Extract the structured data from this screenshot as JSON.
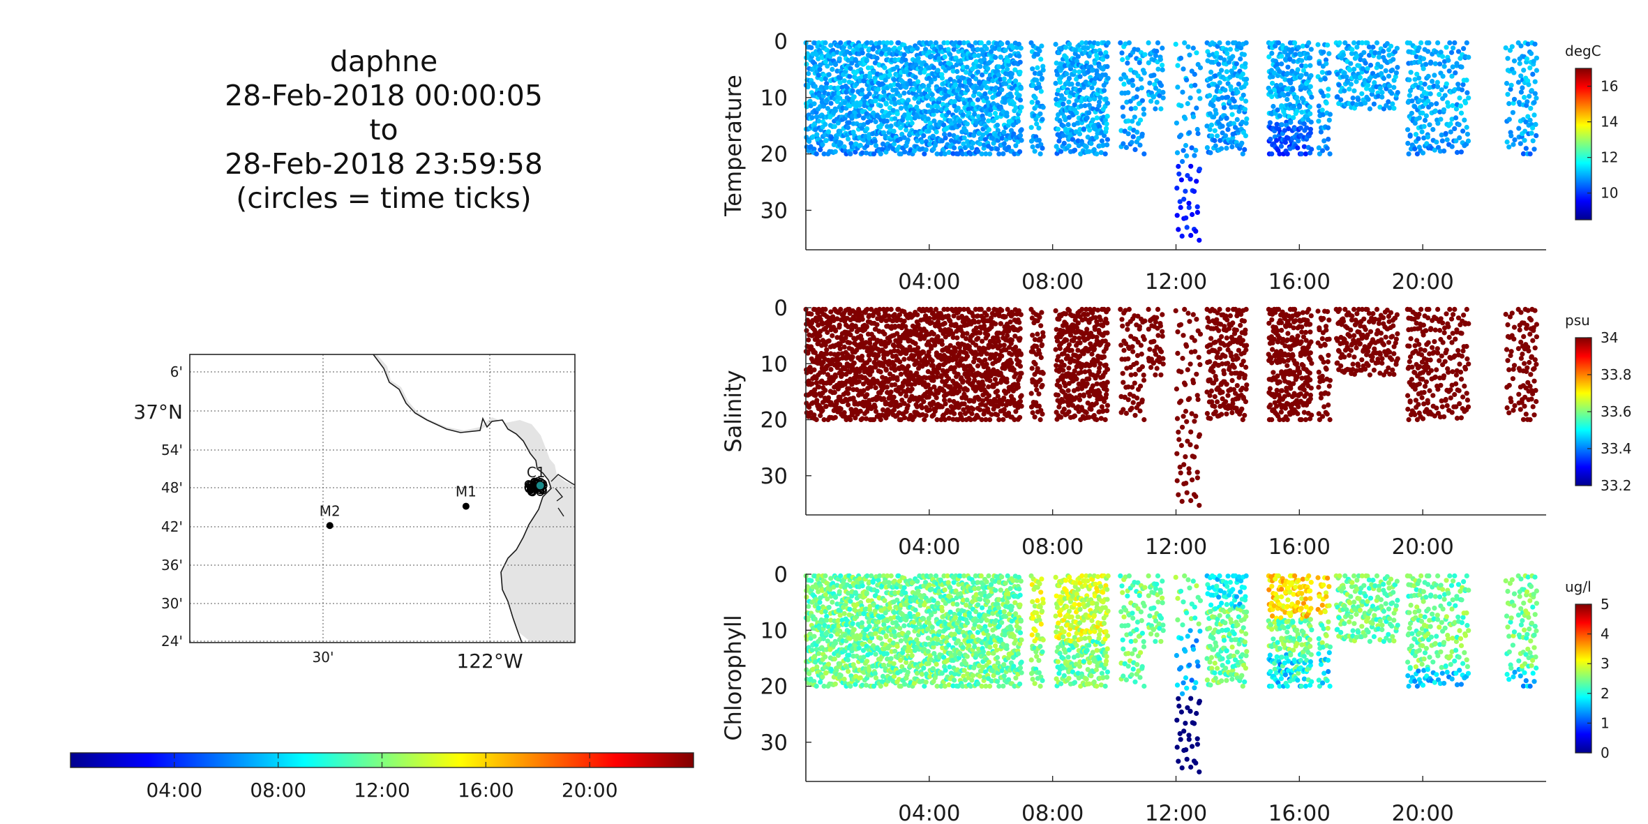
{
  "title": {
    "lines": [
      "daphne",
      "28-Feb-2018 00:00:05",
      "to",
      "28-Feb-2018 23:59:58",
      "(circles = time ticks)"
    ]
  },
  "chart_data": [
    {
      "type": "scatter",
      "panel": "temperature",
      "ylabel": "Temperature",
      "x_range_hours": [
        0,
        24
      ],
      "x_tick_labels": [
        "04:00",
        "08:00",
        "12:00",
        "16:00",
        "20:00"
      ],
      "y_range_depth": [
        0,
        37
      ],
      "y_reversed": true,
      "y_tick_labels": [
        "0",
        "10",
        "20",
        "30"
      ],
      "colorbar": {
        "label": "degC",
        "range": [
          8.5,
          17
        ],
        "ticks": [
          "10",
          "12",
          "14",
          "16"
        ],
        "colormap": "jet"
      },
      "value_typical": 11.0,
      "deep_value": 9.8,
      "shallow_warm_value": 11.5
    },
    {
      "type": "scatter",
      "panel": "salinity",
      "ylabel": "Salinity",
      "x_range_hours": [
        0,
        24
      ],
      "x_tick_labels": [
        "04:00",
        "08:00",
        "12:00",
        "16:00",
        "20:00"
      ],
      "y_range_depth": [
        0,
        37
      ],
      "y_reversed": true,
      "y_tick_labels": [
        "0",
        "10",
        "20",
        "30"
      ],
      "colorbar": {
        "label": "psu",
        "range": [
          33.2,
          34
        ],
        "ticks": [
          "34",
          "33.8",
          "33.6",
          "33.4",
          "33.2"
        ],
        "colormap": "jet"
      },
      "value_typical": 34.0
    },
    {
      "type": "scatter",
      "panel": "chlorophyll",
      "ylabel": "Chlorophyll",
      "x_range_hours": [
        0,
        24
      ],
      "x_tick_labels": [
        "04:00",
        "08:00",
        "12:00",
        "16:00",
        "20:00"
      ],
      "y_range_depth": [
        0,
        37
      ],
      "y_reversed": true,
      "y_tick_labels": [
        "0",
        "10",
        "20",
        "30"
      ],
      "colorbar": {
        "label": "ug/l",
        "range": [
          0,
          5
        ],
        "ticks": [
          "5",
          "4",
          "3",
          "2",
          "1",
          "0"
        ],
        "colormap": "jet"
      },
      "value_typical": 2.4,
      "deep_value": 0.6
    },
    {
      "type": "map",
      "panel": "track-map",
      "lat_tick_labels": [
        "6'",
        "37°N",
        "54'",
        "48'",
        "42'",
        "36'",
        "30'",
        "24'"
      ],
      "lon_tick_labels": [
        "30'",
        "122°W"
      ],
      "stations": [
        {
          "name": "M2",
          "lon": -122.38,
          "lat": 36.7
        },
        {
          "name": "M1",
          "lon": -122.03,
          "lat": 36.75
        },
        {
          "name": "C1",
          "lon": -121.85,
          "lat": 36.8
        }
      ],
      "time_colorbar": {
        "range_hours": [
          0,
          24
        ],
        "tick_labels": [
          "04:00",
          "08:00",
          "12:00",
          "16:00",
          "20:00"
        ],
        "colormap": "jet"
      }
    }
  ],
  "profile_segments": [
    {
      "start": 0.0,
      "end": 1.0,
      "density": 3.6,
      "max_depth": 20
    },
    {
      "start": 1.0,
      "end": 3.0,
      "density": 3.8,
      "max_depth": 20
    },
    {
      "start": 3.0,
      "end": 5.0,
      "density": 3.6,
      "max_depth": 20
    },
    {
      "start": 5.0,
      "end": 7.0,
      "density": 3.6,
      "max_depth": 20
    },
    {
      "start": 7.3,
      "end": 7.7,
      "density": 2.6,
      "max_depth": 20
    },
    {
      "start": 8.1,
      "end": 9.8,
      "density": 3.4,
      "max_depth": 20
    },
    {
      "start": 10.2,
      "end": 11.0,
      "density": 1.6,
      "max_depth": 20
    },
    {
      "start": 11.1,
      "end": 11.6,
      "density": 1.4,
      "max_depth": 12
    },
    {
      "start": 12.0,
      "end": 12.8,
      "density": 1.6,
      "max_depth": 36
    },
    {
      "start": 13.0,
      "end": 14.3,
      "density": 2.6,
      "max_depth": 20
    },
    {
      "start": 15.0,
      "end": 16.4,
      "density": 3.4,
      "max_depth": 20
    },
    {
      "start": 16.6,
      "end": 17.0,
      "density": 2.0,
      "max_depth": 20
    },
    {
      "start": 17.2,
      "end": 18.2,
      "density": 1.6,
      "max_depth": 12
    },
    {
      "start": 18.2,
      "end": 19.2,
      "density": 1.4,
      "max_depth": 12
    },
    {
      "start": 19.5,
      "end": 20.2,
      "density": 2.4,
      "max_depth": 20
    },
    {
      "start": 20.2,
      "end": 21.5,
      "density": 1.6,
      "max_depth": 20
    },
    {
      "start": 22.7,
      "end": 23.0,
      "density": 1.4,
      "max_depth": 20
    },
    {
      "start": 23.1,
      "end": 23.7,
      "density": 2.0,
      "max_depth": 20
    }
  ],
  "colors": {
    "axis": "#262626",
    "grid": "#c8c8c8",
    "land": "#e4e4e4",
    "coast": "#1a1a1a",
    "station": "#000000",
    "salinity_dot": "#800000"
  }
}
